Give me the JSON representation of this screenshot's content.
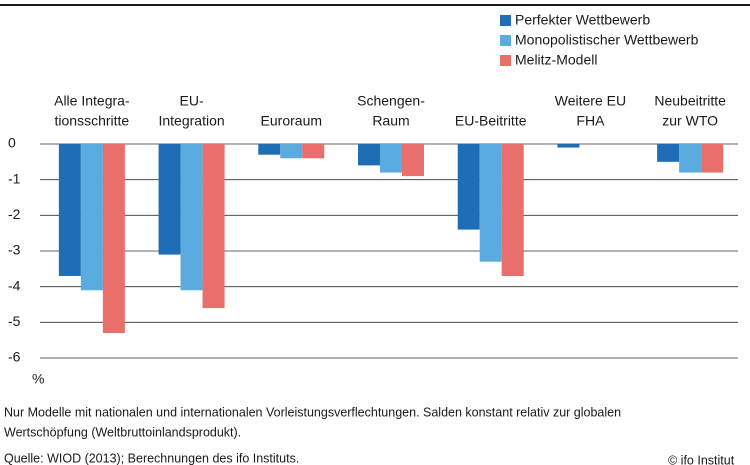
{
  "chart_data": {
    "type": "bar",
    "categories": [
      [
        "Alle Integra-",
        "tionsschritte"
      ],
      [
        "EU-",
        "Integration"
      ],
      [
        "Euroraum"
      ],
      [
        "Schengen-",
        "Raum"
      ],
      [
        "EU-Beitritte"
      ],
      [
        "Weitere EU",
        "FHA"
      ],
      [
        "Neubeitritte",
        "zur WTO"
      ]
    ],
    "series": [
      {
        "name": "Perfekter Wettbewerb",
        "color": "#1f6db5",
        "values": [
          -3.7,
          -3.1,
          -0.3,
          -0.6,
          -2.4,
          -0.1,
          -0.5
        ]
      },
      {
        "name": "Monopolistischer Wettbewerb",
        "color": "#5aabdf",
        "values": [
          -4.1,
          -4.1,
          -0.4,
          -0.8,
          -3.3,
          0,
          -0.8
        ]
      },
      {
        "name": "Melitz-Modell",
        "color": "#e86f6c",
        "values": [
          -5.3,
          -4.6,
          -0.4,
          -0.9,
          -3.7,
          0,
          -0.8
        ]
      }
    ],
    "ylim": [
      -6,
      0
    ],
    "yticks": [
      0,
      -1,
      -2,
      -3,
      -4,
      -5,
      -6
    ],
    "grid": true,
    "y_unit": "%",
    "notes": [
      "Nur Modelle mit nationalen und internationalen Vorleistungsverflechtungen. Salden konstant relativ zur globalen",
      "Wertschöpfung (Weltbruttoinlandsprodukt)."
    ],
    "source": "Quelle: WIOD (2013); Berechnungen des ifo Instituts.",
    "copyright": "© ifo Institut"
  }
}
